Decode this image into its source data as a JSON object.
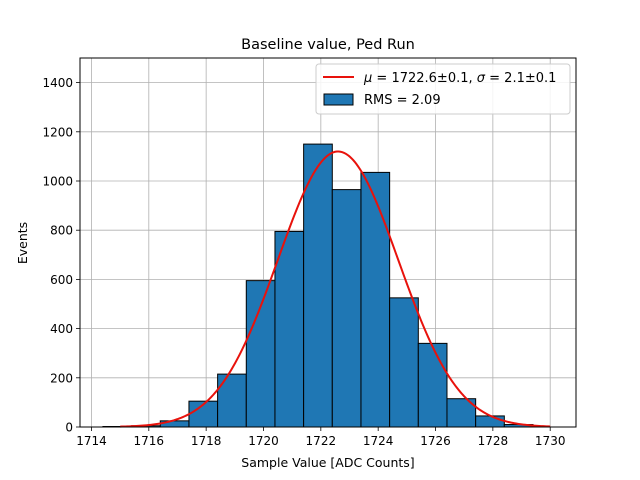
{
  "chart_data": {
    "type": "bar",
    "title": "Baseline value, Ped Run",
    "xlabel": "Sample Value [ADC Counts]",
    "ylabel": "Events",
    "xlim": [
      1713.6,
      1730.9
    ],
    "ylim": [
      0,
      1500
    ],
    "xticks": [
      1714,
      1716,
      1718,
      1720,
      1722,
      1724,
      1726,
      1728,
      1730
    ],
    "yticks": [
      0,
      200,
      400,
      600,
      800,
      1000,
      1200,
      1400
    ],
    "grid": true,
    "legend_position": "top-right",
    "bar_color": "#1f77b4",
    "bar_edge_color": "#000000",
    "fit_color": "#e8120c",
    "histogram": {
      "name": "RMS = 2.09",
      "bin_edges": [
        1714.4,
        1715.4,
        1716.4,
        1717.4,
        1718.4,
        1719.4,
        1720.4,
        1721.4,
        1722.4,
        1723.4,
        1724.4,
        1725.4,
        1726.4,
        1727.4,
        1728.4,
        1729.4
      ],
      "counts": [
        2,
        5,
        25,
        105,
        215,
        595,
        795,
        1150,
        965,
        1035,
        525,
        340,
        115,
        45,
        10
      ]
    },
    "fit": {
      "name_parts": [
        "μ",
        " = 1722.6±0.1, ",
        "σ",
        " = 2.1±0.1"
      ],
      "mu": 1722.6,
      "sigma": 2.1,
      "amplitude": 1120,
      "x_range": [
        1715,
        1730
      ]
    }
  }
}
